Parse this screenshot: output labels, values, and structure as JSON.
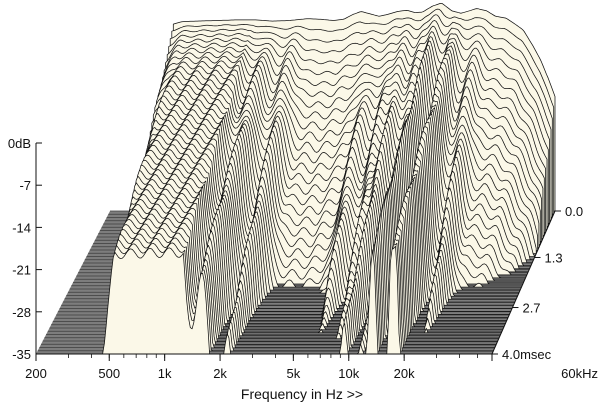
{
  "chart_data": {
    "type": "area",
    "subtype": "cumulative-spectral-decay-waterfall",
    "title": "",
    "xlabel": "Frequency in Hz >>",
    "ylabel": "",
    "zlabel": "",
    "x_scale": "log",
    "x_ticks": [
      200,
      500,
      1000,
      2000,
      5000,
      10000,
      20000,
      60000
    ],
    "x_tick_labels": [
      "200",
      "500",
      "1k",
      "2k",
      "5k",
      "10k",
      "20k",
      "60kHz"
    ],
    "y_ticks": [
      0,
      -7,
      -14,
      -21,
      -28,
      -35
    ],
    "y_tick_labels": [
      "0dB",
      "-7",
      "-14",
      "-21",
      "-28",
      "-35"
    ],
    "ylim": [
      -35,
      0
    ],
    "z_ticks": [
      0.0,
      1.3,
      2.7,
      4.0
    ],
    "z_tick_labels": [
      "0.0",
      "1.3",
      "2.7",
      "4.0msec"
    ],
    "zlim": [
      0,
      4.0
    ],
    "slice_count": 48,
    "floor_color": "#7d7d7d",
    "fill_color": "#fbf8e8",
    "line_color": "#111111",
    "series": [
      {
        "time_ms": 0.0,
        "x": [
          450,
          500,
          600,
          800,
          1000,
          1300,
          1600,
          2000,
          2500,
          3000,
          3500,
          4000,
          4500,
          5000,
          5600,
          6300,
          7000,
          8000,
          9000,
          10000,
          11000,
          12500,
          14000,
          16000,
          18000,
          20000,
          22000,
          25000,
          28000,
          32000,
          36000,
          40000,
          45000,
          50000,
          55000,
          60000
        ],
        "values": [
          -4.0,
          -3.6,
          -3.5,
          -3.4,
          -3.3,
          -3.3,
          -3.5,
          -3.4,
          -3.1,
          -3.2,
          -3.4,
          -3.2,
          -2.4,
          -1.9,
          -2.3,
          -2.7,
          -2.4,
          -1.9,
          -1.7,
          -2.1,
          -2.0,
          -1.0,
          -0.5,
          -1.8,
          -2.2,
          -1.8,
          -1.4,
          -1.8,
          -2.7,
          -3.0,
          -4.0,
          -5.0,
          -7.5,
          -10.0,
          -13.0,
          -16.0
        ]
      }
    ]
  }
}
